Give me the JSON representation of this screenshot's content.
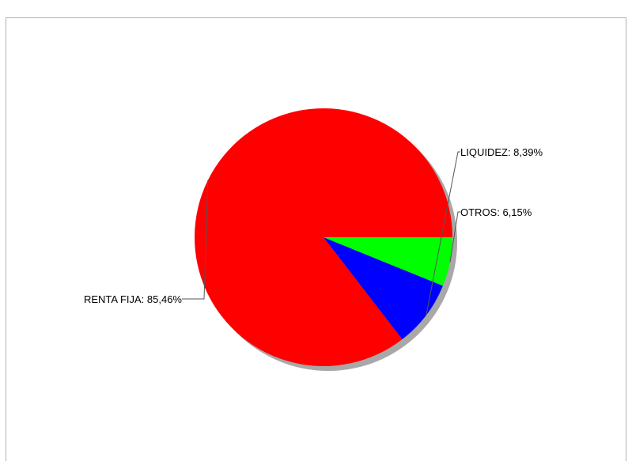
{
  "chart_data": {
    "type": "pie",
    "title": "",
    "slices": [
      {
        "label": "RENTA FIJA",
        "value": 85.46,
        "display": "RENTA FIJA: 85,46%",
        "color": "#ff0000"
      },
      {
        "label": "LIQUIDEZ",
        "value": 8.39,
        "display": "LIQUIDEZ: 8,39%",
        "color": "#0000ff"
      },
      {
        "label": "OTROS",
        "value": 6.15,
        "display": "OTROS: 6,15%",
        "color": "#00ff00"
      }
    ],
    "start_angle_deg": 0,
    "direction": "counterclockwise",
    "legend": "none",
    "shadow": true
  },
  "colors": {
    "background": "#ffffff",
    "frame": "#b0b0b0",
    "leader": "#555555",
    "label_text": "#000000"
  }
}
